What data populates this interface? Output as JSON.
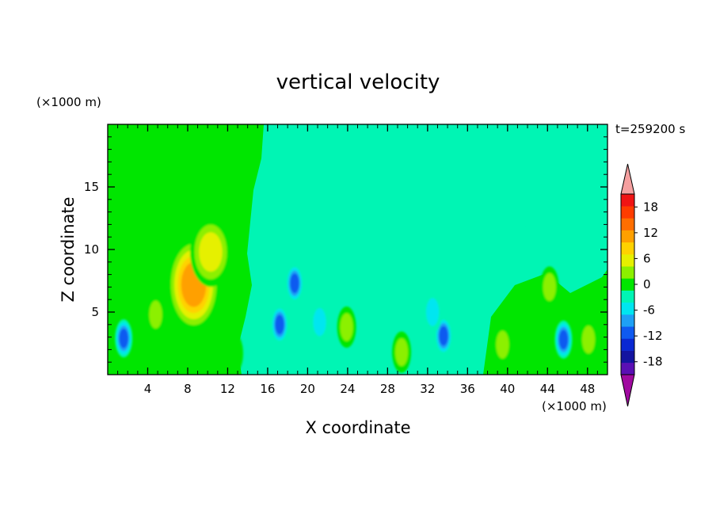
{
  "chart_data": {
    "type": "heatmap",
    "title": "vertical velocity",
    "xlabel": "X coordinate",
    "ylabel": "Z coordinate",
    "x_unit": "(×1000 m)",
    "y_unit": "(×1000 m)",
    "time_label": "t=259200 s",
    "xlim": [
      0,
      50
    ],
    "ylim": [
      0,
      20
    ],
    "x_ticks": [
      4,
      8,
      12,
      16,
      20,
      24,
      28,
      32,
      36,
      40,
      44,
      48
    ],
    "y_ticks": [
      5,
      10,
      15
    ],
    "colorbar": {
      "levels": [
        -21,
        -18,
        -15,
        -12,
        -9,
        -6,
        -3,
        0,
        3,
        6,
        9,
        12,
        15,
        18,
        21
      ],
      "tick_labels": [
        "18",
        "12",
        "6",
        "0",
        "-6",
        "-12",
        "-18"
      ],
      "tick_values": [
        18,
        12,
        6,
        0,
        -6,
        -12,
        -18
      ],
      "colors": [
        "#5a0fb4",
        "#1414a0",
        "#0a28d2",
        "#0f5af0",
        "#1ea0f5",
        "#00e6f0",
        "#00f5b4",
        "#00e600",
        "#8cf000",
        "#e6f000",
        "#ffd200",
        "#ffa000",
        "#ff6e00",
        "#ff3c00",
        "#f01414"
      ],
      "under_color": "#a00aa0",
      "over_color": "#f5a0a0",
      "extend": "both"
    },
    "features": [
      {
        "x": 1.6,
        "z": 2.9,
        "value": -12
      },
      {
        "x": 4.8,
        "z": 4.8,
        "value": 7
      },
      {
        "x": 8.6,
        "z": 7.2,
        "value": 16
      },
      {
        "x": 10.3,
        "z": 9.8,
        "value": 9
      },
      {
        "x": 12.6,
        "z": 1.7,
        "value": 3
      },
      {
        "x": 17.2,
        "z": 4.0,
        "value": -12
      },
      {
        "x": 18.7,
        "z": 7.3,
        "value": -12
      },
      {
        "x": 21.2,
        "z": 4.2,
        "value": -7
      },
      {
        "x": 23.9,
        "z": 3.8,
        "value": 6
      },
      {
        "x": 29.4,
        "z": 1.8,
        "value": 5
      },
      {
        "x": 33.6,
        "z": 3.1,
        "value": -12
      },
      {
        "x": 32.5,
        "z": 5.0,
        "value": -7
      },
      {
        "x": 39.5,
        "z": 2.4,
        "value": 5
      },
      {
        "x": 41.6,
        "z": 3.2,
        "value": 4
      },
      {
        "x": 44.2,
        "z": 7.0,
        "value": 5
      },
      {
        "x": 45.6,
        "z": 2.8,
        "value": -12
      },
      {
        "x": 48.1,
        "z": 2.8,
        "value": 6
      },
      {
        "x": 41.2,
        "z": 13.5,
        "value": -2
      }
    ]
  }
}
